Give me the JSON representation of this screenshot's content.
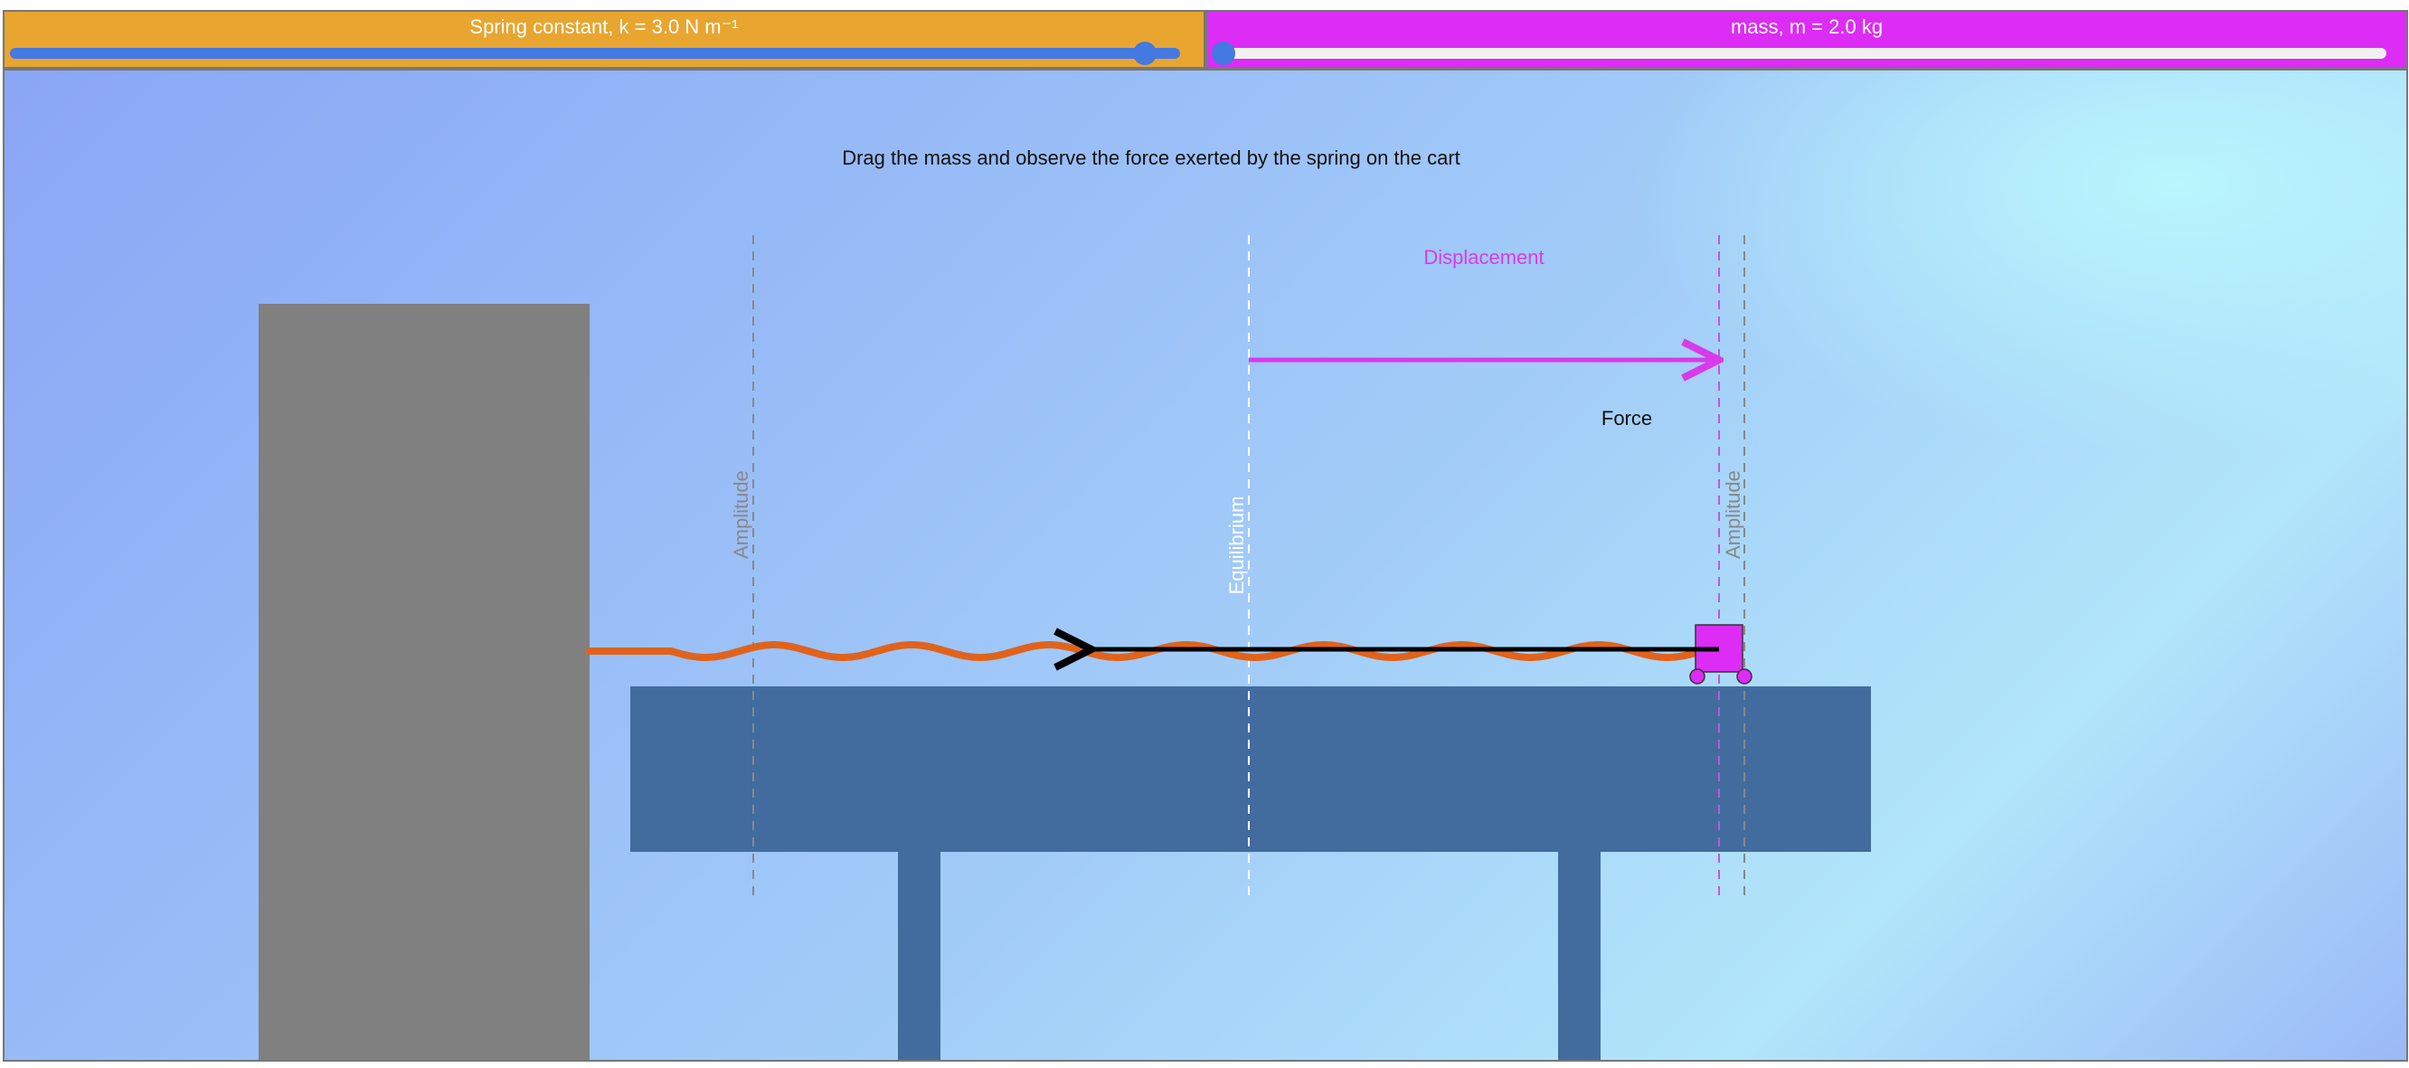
{
  "controls": {
    "spring_constant": {
      "label": "Spring constant, k = 3.0 N m⁻¹",
      "value": 3.0,
      "fraction": 0.97,
      "panel_color": "#e8a530",
      "track_color": "#4479e1"
    },
    "mass": {
      "label": "mass, m = 2.0 kg",
      "value": 2.0,
      "fraction": 0.0,
      "panel_color": "#dc2cf5",
      "track_color": "#f0f0f0"
    }
  },
  "scene": {
    "instruction": "Drag the mass and observe the force exerted by the spring on the cart",
    "displacement_label": "Displacement",
    "force_label": "Force",
    "amplitude_left_label": "Amplitude",
    "equilibrium_label": "Equilibrium",
    "amplitude_right_label": "Amplitude"
  },
  "colors": {
    "wall": "#808080",
    "table": "#426c9e",
    "spring": "#e0631c",
    "cart": "#dc2cf5",
    "displacement_arrow": "#d83be9",
    "force_arrow": "#000000",
    "guide_gray": "#888888",
    "guide_white": "#ffffff",
    "guide_magenta": "#c456d8"
  }
}
